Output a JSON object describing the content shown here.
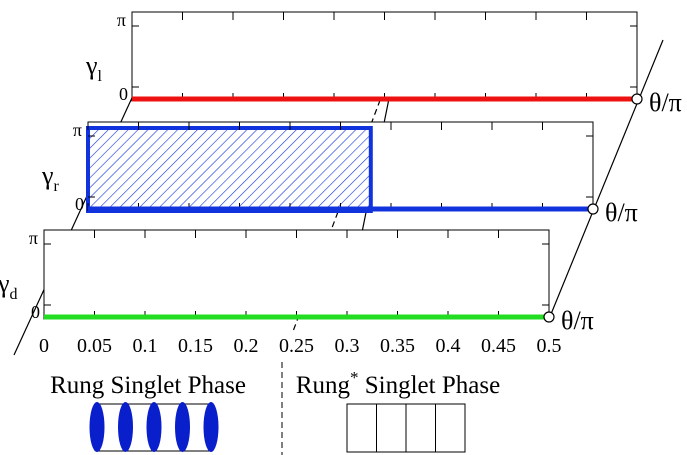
{
  "chart_data": [
    {
      "type": "line",
      "panel": "top",
      "ylabel": "γl",
      "ylabel_main": "γ",
      "ylabel_sub": "l",
      "xlabel": "θ/π",
      "ytick_labels": [
        "0",
        "π"
      ],
      "xlim": [
        0,
        0.5
      ],
      "ylim": [
        0,
        3.14159
      ],
      "series": [
        {
          "color": "#ee1111",
          "x": [
            0,
            0.5
          ],
          "y": [
            0,
            0
          ]
        }
      ],
      "shaded": null
    },
    {
      "type": "area",
      "panel": "middle",
      "ylabel": "γr",
      "ylabel_main": "γ",
      "ylabel_sub": "r",
      "xlabel": "θ/π",
      "ytick_labels": [
        "π",
        "0"
      ],
      "xlim": [
        0,
        0.5
      ],
      "ylim": [
        0,
        3.14159
      ],
      "series": [
        {
          "color": "#1133dd",
          "x": [
            0,
            0.5
          ],
          "y": [
            0,
            0
          ]
        }
      ],
      "shaded": {
        "x0": 0,
        "x1": 0.25,
        "y0": 0,
        "y1": 3.14159,
        "color": "#1133dd",
        "hatch": true
      }
    },
    {
      "type": "line",
      "panel": "bottom",
      "ylabel": "γd",
      "ylabel_main": "γ",
      "ylabel_sub": "d",
      "xlabel": "θ/π",
      "ytick_labels": [
        "π",
        "0"
      ],
      "xlim": [
        0,
        0.5
      ],
      "ylim": [
        0,
        3.14159
      ],
      "xtick_labels": [
        "0",
        "0.05",
        "0.1",
        "0.15",
        "0.2",
        "0.25",
        "0.3",
        "0.35",
        "0.4",
        "0.45",
        "0.5"
      ],
      "series": [
        {
          "color": "#22dd22",
          "x": [
            0,
            0.5
          ],
          "y": [
            0,
            0
          ]
        }
      ],
      "shaded": null
    }
  ],
  "phases": {
    "left_label": "Rung Singlet Phase",
    "right_label_main": "Rung",
    "right_label_sup": "*",
    "right_label_rest": " Singlet Phase",
    "left_ovals": 5,
    "left_oval_color": "#0a1fcc",
    "right_boxes": 4
  },
  "boundary_x": 0.25
}
